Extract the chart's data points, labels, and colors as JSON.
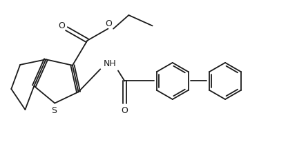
{
  "bg_color": "#ffffff",
  "line_color": "#1a1a1a",
  "line_width": 1.3,
  "figsize": [
    4.31,
    2.07
  ],
  "dpi": 100,
  "xlim": [
    0,
    10
  ],
  "ylim": [
    0,
    4.8
  ]
}
